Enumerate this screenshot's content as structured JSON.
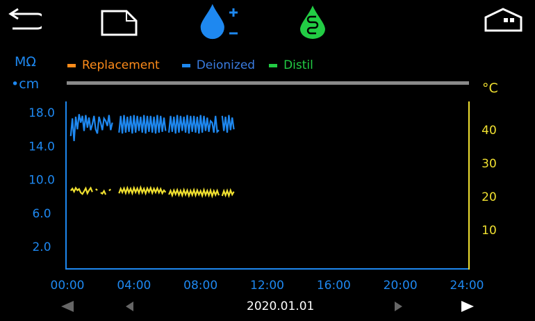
{
  "toolbar": {
    "icons": [
      "back-arrow-icon",
      "new-page-icon",
      "deionized-drop-icon",
      "distil-drop-icon",
      "home-icon"
    ]
  },
  "colors": {
    "replacement": "#ff8c1a",
    "deionized": "#1e88f0",
    "distil": "#22cc44",
    "temperature": "#f0e030",
    "axis_left": "#1e88f0",
    "axis_right": "#f0e030",
    "bar": "#8a8a8a"
  },
  "legend": [
    {
      "label": "Replacement",
      "color": "#ff8c1a"
    },
    {
      "label": "Deionized",
      "color": "#1e88f0"
    },
    {
      "label": "Distil",
      "color": "#22cc44"
    }
  ],
  "chart_data": {
    "type": "line",
    "left_unit_top": "MΩ",
    "left_unit_bottom": "•cm",
    "right_unit": "°C",
    "xlim_hours": [
      0,
      24
    ],
    "x_tick_labels": [
      "00:00",
      "04:00",
      "08:00",
      "12:00",
      "16:00",
      "20:00",
      "24:00"
    ],
    "y_left_ticks": [
      "18.0",
      "14.0",
      "10.0",
      "6.0",
      "2.0"
    ],
    "y_left_tick_values": [
      18,
      14,
      10,
      6,
      2
    ],
    "y_right_ticks": [
      "40",
      "30",
      "20",
      "10"
    ],
    "y_right_tick_values": [
      40,
      30,
      20,
      10
    ],
    "grid": false,
    "x_start_hours": 0.2,
    "x_step_hours": 0.1,
    "series": [
      {
        "axis": "left",
        "color": "#1e88f0",
        "values": [
          15.2,
          17.3,
          14.6,
          17.5,
          16.0,
          17.8,
          16.8,
          17.6,
          15.8,
          17.7,
          16.2,
          17.4,
          15.9,
          16.6,
          17.6,
          16.0,
          15.5,
          17.5,
          16.8,
          15.9,
          17.3,
          17.0,
          16.4,
          17.7,
          15.9,
          16.8,
          null,
          null,
          null,
          15.6,
          17.6,
          15.5,
          17.7,
          15.6,
          17.5,
          15.7,
          17.6,
          15.5,
          17.7,
          15.6,
          17.6,
          15.8,
          17.5,
          15.6,
          17.7,
          15.5,
          17.6,
          15.7,
          17.6,
          15.6,
          17.5,
          15.5,
          17.7,
          15.6,
          17.6,
          15.7,
          17.4,
          15.8,
          null,
          15.6,
          17.6,
          15.7,
          17.5,
          15.5,
          17.7,
          15.6,
          17.6,
          15.8,
          17.5,
          15.6,
          17.7,
          15.5,
          17.6,
          15.7,
          17.6,
          15.6,
          17.5,
          15.5,
          17.7,
          15.6,
          17.6,
          15.8,
          17.4,
          15.7,
          17.0,
          16.8,
          15.6,
          17.6,
          15.7,
          15.9,
          null,
          17.6,
          15.8,
          17.5,
          15.6,
          17.7,
          15.9,
          17.4,
          16.0
        ]
      },
      {
        "axis": "right",
        "color": "#f0e030",
        "values": [
          21.8,
          22.4,
          21.5,
          22.6,
          21.9,
          22.3,
          21.2,
          20.8,
          21.6,
          22.5,
          21.0,
          21.9,
          22.6,
          21.4,
          null,
          22.3,
          21.9,
          null,
          21.2,
          20.9,
          21.7,
          20.6,
          null,
          21.8,
          22.2,
          null,
          null,
          null,
          null,
          21.0,
          22.4,
          21.3,
          22.5,
          21.1,
          22.6,
          21.2,
          22.4,
          21.0,
          22.6,
          21.3,
          22.5,
          21.1,
          22.7,
          21.2,
          22.4,
          21.0,
          22.5,
          21.4,
          22.6,
          21.1,
          22.4,
          21.3,
          22.5,
          21.2,
          22.3,
          21.0,
          21.9,
          21.3,
          null,
          20.6,
          21.8,
          20.4,
          21.9,
          20.7,
          22.0,
          20.5,
          21.8,
          20.4,
          22.0,
          20.6,
          21.9,
          20.3,
          21.8,
          20.5,
          22.0,
          20.4,
          21.9,
          20.6,
          21.7,
          20.3,
          22.0,
          20.5,
          21.8,
          20.4,
          21.9,
          20.2,
          21.7,
          20.5,
          21.8,
          20.4,
          null,
          20.2,
          21.7,
          20.4,
          21.8,
          20.3,
          21.9,
          20.6,
          21.5
        ]
      }
    ]
  },
  "navigation": {
    "date": "2020.01.01"
  }
}
